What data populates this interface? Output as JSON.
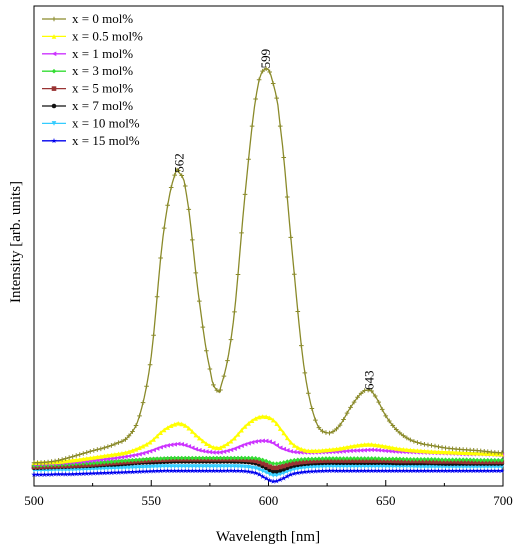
{
  "chart_data": {
    "type": "line",
    "xlabel": "Wavelength [nm]",
    "ylabel": "Intensity [arb. units]",
    "xlim": [
      500,
      700
    ],
    "ylim": [
      0,
      100
    ],
    "x_ticks": [
      "500",
      "550",
      "600",
      "650",
      "700"
    ],
    "y_ticks_shown": false,
    "grid": false,
    "legend_position": "top-left",
    "x": [
      500,
      505,
      510,
      515,
      520,
      525,
      530,
      535,
      540,
      545,
      550,
      555,
      560,
      562,
      565,
      570,
      575,
      578,
      580,
      585,
      590,
      595,
      599,
      602,
      605,
      610,
      615,
      620,
      625,
      630,
      635,
      640,
      643,
      645,
      650,
      655,
      660,
      665,
      670,
      675,
      680,
      685,
      690,
      695,
      700
    ],
    "series": [
      {
        "name": "x = 0 mol%",
        "color": "#8a8a2a",
        "marker": "+",
        "values": [
          5.0,
          5.1,
          5.5,
          6.2,
          7.0,
          7.8,
          8.5,
          9.5,
          11.0,
          16.0,
          30.0,
          58.0,
          72.5,
          73.0,
          68.0,
          45.0,
          27.0,
          22.0,
          23.5,
          38.0,
          68.0,
          92.0,
          97.5,
          94.0,
          84.0,
          55.0,
          28.0,
          15.0,
          12.0,
          13.5,
          18.0,
          21.5,
          22.0,
          21.0,
          16.0,
          12.5,
          10.5,
          9.5,
          9.0,
          8.5,
          8.2,
          8.0,
          7.8,
          7.5,
          7.3
        ]
      },
      {
        "name": "x = 0.5 mol%",
        "color": "#ffff00",
        "marker": "▲",
        "values": [
          5.0,
          5.1,
          5.2,
          5.5,
          5.8,
          6.2,
          6.6,
          7.0,
          7.5,
          8.5,
          10.0,
          12.5,
          14.0,
          14.2,
          13.5,
          11.0,
          9.0,
          8.5,
          8.7,
          10.5,
          13.5,
          15.5,
          15.8,
          15.0,
          13.0,
          9.5,
          8.0,
          7.8,
          8.0,
          8.3,
          8.8,
          9.2,
          9.3,
          9.2,
          8.8,
          8.3,
          8.0,
          7.8,
          7.6,
          7.5,
          7.4,
          7.3,
          7.2,
          7.1,
          7.0
        ]
      },
      {
        "name": "x = 1 mol%",
        "color": "#cc33ff",
        "marker": "◄",
        "values": [
          4.6,
          4.7,
          4.8,
          5.0,
          5.2,
          5.5,
          5.8,
          6.1,
          6.5,
          7.0,
          7.8,
          8.8,
          9.3,
          9.4,
          9.0,
          8.0,
          7.5,
          7.4,
          7.5,
          8.2,
          9.3,
          10.0,
          10.1,
          9.6,
          8.5,
          7.6,
          7.4,
          7.4,
          7.5,
          7.6,
          7.8,
          7.9,
          8.0,
          8.0,
          7.8,
          7.6,
          7.5,
          7.4,
          7.3,
          7.2,
          7.1,
          7.0,
          7.0,
          6.9,
          6.8
        ]
      },
      {
        "name": "x = 3 mol%",
        "color": "#33dd33",
        "marker": "◆",
        "values": [
          4.3,
          4.4,
          4.5,
          4.6,
          4.8,
          4.9,
          5.1,
          5.3,
          5.5,
          5.7,
          5.9,
          6.0,
          6.1,
          6.1,
          6.1,
          6.1,
          6.1,
          6.1,
          6.1,
          6.1,
          6.1,
          6.0,
          5.4,
          4.8,
          4.9,
          5.5,
          5.8,
          5.9,
          6.0,
          6.0,
          6.0,
          6.0,
          6.0,
          6.0,
          5.9,
          5.9,
          5.8,
          5.8,
          5.8,
          5.7,
          5.7,
          5.7,
          5.6,
          5.6,
          5.6
        ]
      },
      {
        "name": "x = 5 mol%",
        "color": "#993333",
        "marker": "■",
        "values": [
          4.0,
          4.1,
          4.2,
          4.3,
          4.4,
          4.6,
          4.8,
          5.0,
          5.2,
          5.4,
          5.6,
          5.7,
          5.8,
          5.8,
          5.8,
          5.8,
          5.8,
          5.8,
          5.8,
          5.8,
          5.7,
          5.4,
          4.5,
          3.8,
          4.0,
          4.8,
          5.2,
          5.4,
          5.5,
          5.5,
          5.5,
          5.5,
          5.5,
          5.5,
          5.5,
          5.4,
          5.4,
          5.4,
          5.3,
          5.3,
          5.3,
          5.2,
          5.2,
          5.2,
          5.2
        ]
      },
      {
        "name": "x = 7 mol%",
        "color": "#111111",
        "marker": "●",
        "values": [
          3.8,
          3.9,
          4.0,
          4.1,
          4.2,
          4.3,
          4.5,
          4.6,
          4.8,
          5.0,
          5.1,
          5.2,
          5.3,
          5.3,
          5.3,
          5.3,
          5.3,
          5.3,
          5.3,
          5.3,
          5.2,
          4.8,
          3.8,
          3.0,
          3.2,
          4.2,
          4.7,
          4.9,
          5.0,
          5.0,
          5.0,
          5.0,
          5.0,
          5.0,
          5.0,
          4.9,
          4.9,
          4.9,
          4.9,
          4.8,
          4.8,
          4.8,
          4.8,
          4.8,
          4.8
        ]
      },
      {
        "name": "x = 10 mol%",
        "color": "#33ccff",
        "marker": "▼",
        "values": [
          3.2,
          3.2,
          3.3,
          3.3,
          3.4,
          3.5,
          3.6,
          3.7,
          3.8,
          3.9,
          4.0,
          4.1,
          4.1,
          4.1,
          4.1,
          4.1,
          4.1,
          4.1,
          4.1,
          4.1,
          4.0,
          3.6,
          2.7,
          2.0,
          2.3,
          3.3,
          3.8,
          4.0,
          4.1,
          4.1,
          4.1,
          4.1,
          4.1,
          4.1,
          4.1,
          4.1,
          4.1,
          4.0,
          4.0,
          4.0,
          4.0,
          4.0,
          4.0,
          4.0,
          4.0
        ]
      },
      {
        "name": "x = 15 mol%",
        "color": "#0000ee",
        "marker": "★",
        "values": [
          2.2,
          2.2,
          2.3,
          2.3,
          2.4,
          2.5,
          2.6,
          2.7,
          2.8,
          2.9,
          3.0,
          3.1,
          3.1,
          3.1,
          3.1,
          3.1,
          3.1,
          3.1,
          3.1,
          3.1,
          3.0,
          2.5,
          1.3,
          0.6,
          1.0,
          2.3,
          2.8,
          3.0,
          3.1,
          3.1,
          3.1,
          3.1,
          3.1,
          3.1,
          3.1,
          3.1,
          3.1,
          3.1,
          3.1,
          3.1,
          3.1,
          3.1,
          3.1,
          3.1,
          3.1
        ]
      }
    ],
    "annotations": [
      {
        "text": "562",
        "x": 562,
        "y": 73.0
      },
      {
        "text": "599",
        "x": 599,
        "y": 97.5
      },
      {
        "text": "643",
        "x": 643,
        "y": 22.0
      }
    ]
  }
}
